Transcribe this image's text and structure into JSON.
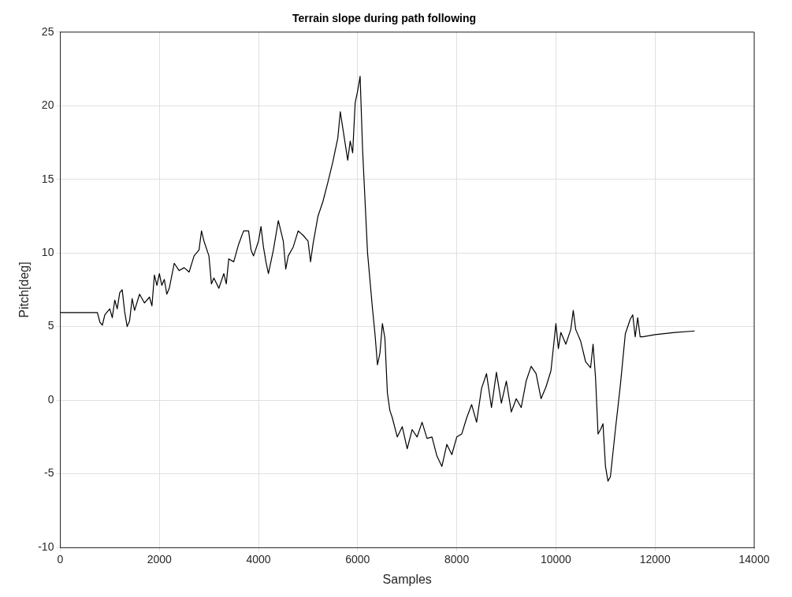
{
  "chart_data": {
    "type": "line",
    "title": "Terrain slope during path following",
    "xlabel": "Samples",
    "ylabel": "Pitch[deg]",
    "xlim": [
      0,
      14000
    ],
    "xticks": [
      0,
      2000,
      4000,
      6000,
      8000,
      10000,
      12000,
      14000
    ],
    "ylim": [
      -10,
      25
    ],
    "yticks": [
      -10,
      -5,
      0,
      5,
      10,
      15,
      20,
      25
    ],
    "grid": true,
    "marker": "none",
    "line_style": "solid",
    "series": [
      {
        "color": "#000000",
        "x": [
          0,
          750,
          800,
          850,
          900,
          1000,
          1050,
          1100,
          1150,
          1200,
          1250,
          1300,
          1350,
          1400,
          1450,
          1500,
          1600,
          1700,
          1800,
          1850,
          1900,
          1950,
          2000,
          2050,
          2100,
          2150,
          2200,
          2300,
          2400,
          2500,
          2600,
          2700,
          2800,
          2850,
          2900,
          3000,
          3050,
          3100,
          3200,
          3300,
          3350,
          3400,
          3500,
          3600,
          3700,
          3800,
          3850,
          3900,
          4000,
          4050,
          4100,
          4150,
          4200,
          4300,
          4400,
          4500,
          4550,
          4600,
          4700,
          4800,
          4900,
          5000,
          5050,
          5100,
          5200,
          5300,
          5400,
          5500,
          5600,
          5650,
          5700,
          5800,
          5850,
          5900,
          5950,
          6000,
          6050,
          6100,
          6200,
          6300,
          6350,
          6400,
          6450,
          6500,
          6550,
          6600,
          6650,
          6700,
          6800,
          6900,
          7000,
          7100,
          7200,
          7300,
          7400,
          7500,
          7600,
          7700,
          7800,
          7900,
          8000,
          8100,
          8200,
          8300,
          8400,
          8500,
          8600,
          8700,
          8800,
          8900,
          9000,
          9100,
          9200,
          9300,
          9400,
          9500,
          9600,
          9700,
          9800,
          9900,
          10000,
          10050,
          10100,
          10200,
          10300,
          10350,
          10400,
          10500,
          10600,
          10700,
          10750,
          10800,
          10850,
          10900,
          10950,
          11000,
          11050,
          11100,
          11200,
          11300,
          11400,
          11500,
          11550,
          11600,
          11650,
          11700,
          11750,
          12000,
          12400,
          12800
        ],
        "values": [
          5.95,
          5.95,
          5.3,
          5.1,
          5.8,
          6.2,
          5.6,
          6.8,
          6.2,
          7.3,
          7.5,
          6.0,
          5.0,
          5.4,
          6.9,
          6.1,
          7.2,
          6.6,
          7.0,
          6.4,
          8.5,
          7.8,
          8.6,
          7.8,
          8.2,
          7.2,
          7.6,
          9.3,
          8.8,
          9.0,
          8.7,
          9.8,
          10.2,
          11.5,
          10.8,
          9.8,
          7.9,
          8.3,
          7.6,
          8.6,
          7.9,
          9.6,
          9.4,
          10.6,
          11.5,
          11.5,
          10.2,
          9.8,
          10.8,
          11.8,
          10.4,
          9.4,
          8.6,
          10.2,
          12.2,
          10.8,
          8.9,
          9.8,
          10.4,
          11.5,
          11.2,
          10.8,
          9.4,
          10.6,
          12.5,
          13.5,
          14.8,
          16.2,
          17.8,
          19.6,
          18.5,
          16.3,
          17.6,
          16.8,
          20.2,
          21.0,
          22.0,
          17,
          10,
          6.2,
          4.5,
          2.4,
          3.2,
          5.2,
          4.2,
          0.5,
          -0.7,
          -1.2,
          -2.5,
          -1.8,
          -3.3,
          -2.0,
          -2.5,
          -1.5,
          -2.6,
          -2.5,
          -3.8,
          -4.5,
          -3.0,
          -3.7,
          -2.5,
          -2.3,
          -1.2,
          -0.3,
          -1.5,
          0.8,
          1.8,
          -0.5,
          1.9,
          -0.2,
          1.3,
          -0.8,
          0.1,
          -0.5,
          1.3,
          2.3,
          1.8,
          0.1,
          0.9,
          2.0,
          5.2,
          3.5,
          4.6,
          3.8,
          4.8,
          6.1,
          4.8,
          4.0,
          2.6,
          2.2,
          3.8,
          1.5,
          -2.3,
          -2.0,
          -1.6,
          -4.5,
          -5.5,
          -5.2,
          -2.0,
          1.0,
          4.5,
          5.5,
          5.8,
          4.3,
          5.6,
          4.3,
          4.3,
          4.45,
          4.6,
          4.7
        ]
      }
    ]
  }
}
